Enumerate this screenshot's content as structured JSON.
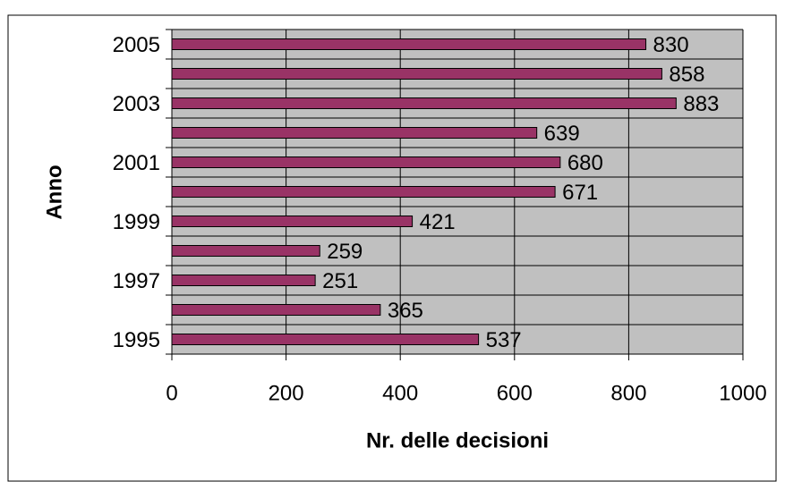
{
  "chart_data": {
    "type": "bar",
    "orientation": "horizontal",
    "x_label": "Nr. delle decisioni",
    "y_label": "Anno",
    "categories": [
      "1995",
      null,
      "1997",
      null,
      "1999",
      null,
      "2001",
      null,
      "2003",
      null,
      "2005"
    ],
    "values": [
      537,
      365,
      251,
      259,
      421,
      671,
      680,
      639,
      883,
      858,
      830
    ],
    "color": "#993366",
    "xlim": [
      0,
      1000
    ],
    "xticks": [
      0,
      200,
      400,
      600,
      800,
      1000
    ],
    "grid": true
  }
}
